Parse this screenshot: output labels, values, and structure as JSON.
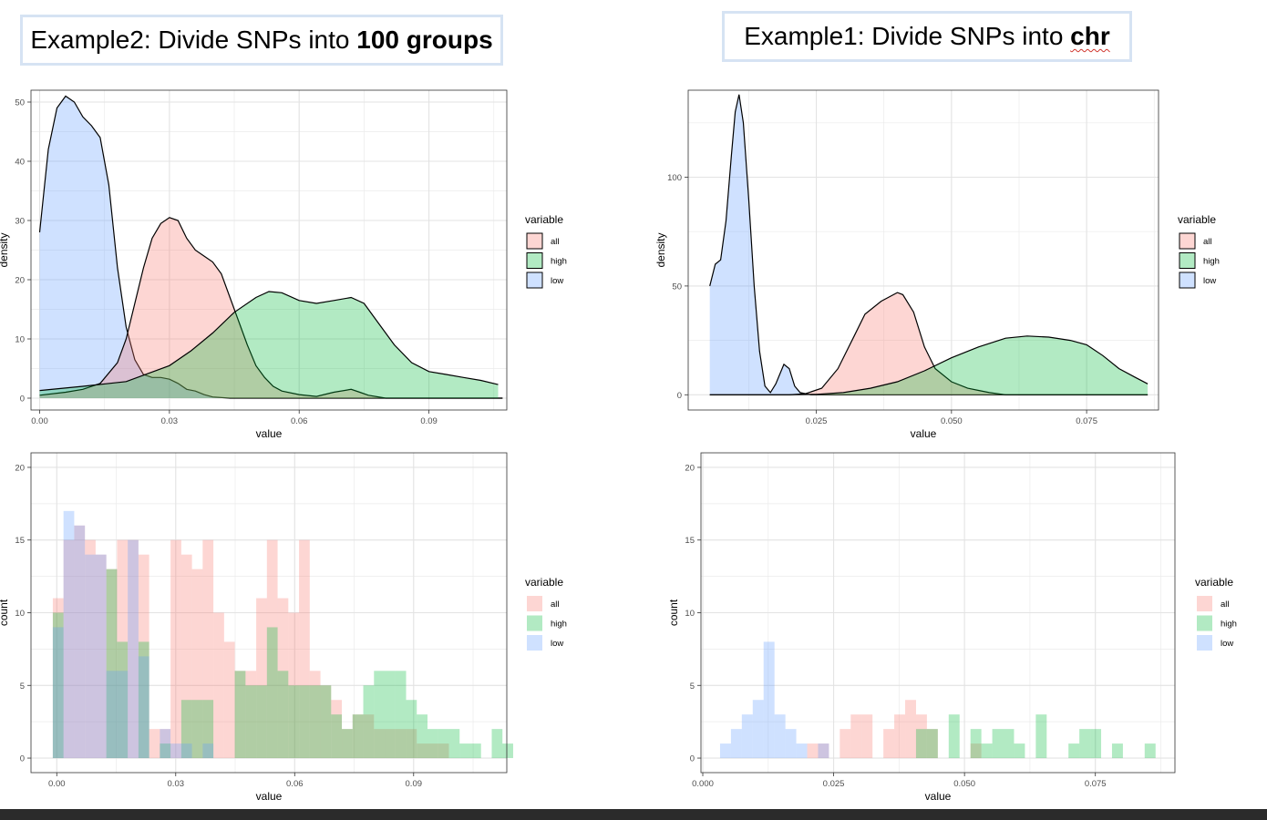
{
  "titles": {
    "left": {
      "prefix": "Example2: Divide SNPs into ",
      "bold": "100 groups"
    },
    "right": {
      "prefix": "Example1: Divide SNPs into ",
      "bold": "chr"
    }
  },
  "colors": {
    "all": "#f8766d",
    "high": "#00ba38",
    "low": "#619cff",
    "grid": "#ebebeb",
    "panel_border": "#333333"
  },
  "chart_data": [
    {
      "id": "density-100groups",
      "type": "area",
      "xlabel": "value",
      "ylabel": "density",
      "xlim": [
        -0.002,
        0.108
      ],
      "ylim": [
        -2,
        52
      ],
      "x_ticks": [
        0.0,
        0.03,
        0.06,
        0.09
      ],
      "x_tick_labels": [
        "0.00",
        "0.03",
        "0.06",
        "0.09"
      ],
      "y_ticks": [
        0,
        10,
        20,
        30,
        40,
        50
      ],
      "y_tick_labels": [
        "0",
        "10",
        "20",
        "30",
        "40",
        "50"
      ],
      "legend": {
        "title": "variable",
        "entries": [
          "all",
          "high",
          "low"
        ],
        "placement": "right"
      },
      "series": [
        {
          "name": "low",
          "points": [
            [
              0.0,
              28
            ],
            [
              0.002,
              42
            ],
            [
              0.004,
              49
            ],
            [
              0.006,
              51
            ],
            [
              0.008,
              50
            ],
            [
              0.01,
              47.5
            ],
            [
              0.012,
              46
            ],
            [
              0.014,
              44
            ],
            [
              0.016,
              36
            ],
            [
              0.018,
              22
            ],
            [
              0.02,
              12
            ],
            [
              0.022,
              6.5
            ],
            [
              0.024,
              4
            ],
            [
              0.026,
              3.5
            ],
            [
              0.028,
              3.5
            ],
            [
              0.03,
              3.2
            ],
            [
              0.032,
              2.5
            ],
            [
              0.034,
              1.5
            ],
            [
              0.036,
              1.2
            ],
            [
              0.038,
              0.6
            ],
            [
              0.04,
              0.2
            ],
            [
              0.044,
              0
            ],
            [
              0.107,
              0
            ]
          ]
        },
        {
          "name": "all",
          "points": [
            [
              0.0,
              0.5
            ],
            [
              0.006,
              1
            ],
            [
              0.01,
              1.5
            ],
            [
              0.014,
              2.5
            ],
            [
              0.018,
              6
            ],
            [
              0.02,
              10
            ],
            [
              0.022,
              16
            ],
            [
              0.024,
              22
            ],
            [
              0.026,
              27
            ],
            [
              0.028,
              29.5
            ],
            [
              0.03,
              30.5
            ],
            [
              0.032,
              30
            ],
            [
              0.034,
              27
            ],
            [
              0.036,
              25
            ],
            [
              0.038,
              24
            ],
            [
              0.04,
              23
            ],
            [
              0.042,
              21
            ],
            [
              0.044,
              17
            ],
            [
              0.046,
              13
            ],
            [
              0.048,
              9
            ],
            [
              0.05,
              5.5
            ],
            [
              0.052,
              3.5
            ],
            [
              0.054,
              2
            ],
            [
              0.056,
              1.2
            ],
            [
              0.06,
              0.6
            ],
            [
              0.064,
              0.3
            ],
            [
              0.068,
              1
            ],
            [
              0.072,
              1.5
            ],
            [
              0.074,
              1
            ],
            [
              0.076,
              0.5
            ],
            [
              0.08,
              0
            ],
            [
              0.107,
              0
            ]
          ]
        },
        {
          "name": "high",
          "points": [
            [
              0.0,
              1.3
            ],
            [
              0.01,
              2
            ],
            [
              0.02,
              2.8
            ],
            [
              0.03,
              5.5
            ],
            [
              0.035,
              8
            ],
            [
              0.04,
              11
            ],
            [
              0.045,
              14.5
            ],
            [
              0.05,
              17
            ],
            [
              0.053,
              18
            ],
            [
              0.056,
              17.8
            ],
            [
              0.06,
              16.5
            ],
            [
              0.064,
              16
            ],
            [
              0.068,
              16.5
            ],
            [
              0.072,
              17
            ],
            [
              0.075,
              16
            ],
            [
              0.078,
              13
            ],
            [
              0.082,
              9
            ],
            [
              0.086,
              6
            ],
            [
              0.09,
              4.5
            ],
            [
              0.094,
              4
            ],
            [
              0.098,
              3.5
            ],
            [
              0.102,
              3
            ],
            [
              0.106,
              2.3
            ]
          ]
        }
      ]
    },
    {
      "id": "density-chr",
      "type": "area",
      "xlabel": "value",
      "ylabel": "density",
      "xlim": [
        0.0013,
        0.0883
      ],
      "ylim": [
        -7,
        140
      ],
      "x_ticks": [
        0.025,
        0.05,
        0.075
      ],
      "x_tick_labels": [
        "0.025",
        "0.050",
        "0.075"
      ],
      "y_ticks": [
        0,
        50,
        100
      ],
      "y_tick_labels": [
        "0",
        "50",
        "100"
      ],
      "legend": {
        "title": "variable",
        "entries": [
          "all",
          "high",
          "low"
        ],
        "placement": "right"
      },
      "series": [
        {
          "name": "low",
          "points": [
            [
              0.0053,
              50
            ],
            [
              0.0063,
              60
            ],
            [
              0.0073,
              62
            ],
            [
              0.0083,
              80
            ],
            [
              0.0093,
              110
            ],
            [
              0.01,
              130
            ],
            [
              0.0107,
              138
            ],
            [
              0.0115,
              125
            ],
            [
              0.0125,
              90
            ],
            [
              0.0135,
              50
            ],
            [
              0.0145,
              20
            ],
            [
              0.0155,
              4
            ],
            [
              0.0165,
              1
            ],
            [
              0.0175,
              5
            ],
            [
              0.019,
              14
            ],
            [
              0.02,
              12
            ],
            [
              0.021,
              4
            ],
            [
              0.022,
              1
            ],
            [
              0.024,
              0
            ],
            [
              0.0863,
              0
            ]
          ]
        },
        {
          "name": "all",
          "points": [
            [
              0.0053,
              0
            ],
            [
              0.02,
              0
            ],
            [
              0.023,
              0.5
            ],
            [
              0.026,
              3
            ],
            [
              0.029,
              12
            ],
            [
              0.032,
              27
            ],
            [
              0.034,
              37
            ],
            [
              0.037,
              43
            ],
            [
              0.04,
              47
            ],
            [
              0.041,
              46
            ],
            [
              0.043,
              38
            ],
            [
              0.045,
              22
            ],
            [
              0.047,
              12
            ],
            [
              0.05,
              6
            ],
            [
              0.053,
              3
            ],
            [
              0.055,
              2
            ],
            [
              0.057,
              1
            ],
            [
              0.06,
              0
            ],
            [
              0.0863,
              0
            ]
          ]
        },
        {
          "name": "high",
          "points": [
            [
              0.0053,
              0
            ],
            [
              0.02,
              0
            ],
            [
              0.025,
              0.2
            ],
            [
              0.03,
              1
            ],
            [
              0.035,
              3
            ],
            [
              0.04,
              6
            ],
            [
              0.045,
              11
            ],
            [
              0.05,
              17
            ],
            [
              0.055,
              22
            ],
            [
              0.06,
              26
            ],
            [
              0.064,
              27
            ],
            [
              0.068,
              26.5
            ],
            [
              0.072,
              25
            ],
            [
              0.075,
              23
            ],
            [
              0.078,
              18
            ],
            [
              0.081,
              12
            ],
            [
              0.084,
              8
            ],
            [
              0.0863,
              5
            ]
          ]
        }
      ]
    },
    {
      "id": "histogram-100groups",
      "type": "bar",
      "xlabel": "value",
      "ylabel": "count",
      "xlim": [
        -0.0065,
        0.1135
      ],
      "ylim": [
        -1,
        21
      ],
      "x_ticks": [
        0.0,
        0.03,
        0.06,
        0.09
      ],
      "x_tick_labels": [
        "0.00",
        "0.03",
        "0.06",
        "0.09"
      ],
      "y_ticks": [
        0,
        5,
        10,
        15,
        20
      ],
      "y_tick_labels": [
        "0",
        "5",
        "10",
        "15",
        "20"
      ],
      "bin_start": -0.001,
      "bin_width": 0.0027,
      "legend": {
        "title": "variable",
        "entries": [
          "all",
          "high",
          "low"
        ],
        "placement": "right"
      },
      "series": [
        {
          "name": "all",
          "values": [
            11,
            15,
            16,
            15,
            14,
            13,
            15,
            15,
            14,
            2,
            2,
            15,
            14,
            13,
            15,
            10,
            8,
            6,
            6,
            11,
            15,
            11,
            10,
            15,
            6,
            5,
            4,
            2,
            3,
            3,
            2,
            2,
            2,
            2,
            1,
            1,
            1,
            0,
            0,
            0,
            0,
            0,
            0
          ]
        },
        {
          "name": "high",
          "values": [
            10,
            0,
            0,
            0,
            0,
            13,
            8,
            0,
            8,
            0,
            1,
            0,
            4,
            4,
            4,
            0,
            0,
            6,
            5,
            5,
            9,
            6,
            5,
            5,
            5,
            5,
            3,
            2,
            3,
            5,
            6,
            6,
            6,
            4,
            3,
            2,
            2,
            2,
            1,
            1,
            0,
            2,
            1
          ]
        },
        {
          "name": "low",
          "values": [
            9,
            17,
            16,
            14,
            14,
            6,
            6,
            15,
            7,
            0,
            2,
            1,
            1,
            0,
            1,
            0,
            0,
            0,
            0,
            0,
            0,
            0,
            0,
            0,
            0,
            0,
            0,
            0,
            0,
            0,
            0,
            0,
            0,
            0,
            0,
            0,
            0,
            0,
            0,
            0,
            0,
            0,
            0
          ]
        }
      ]
    },
    {
      "id": "histogram-chr",
      "type": "bar",
      "xlabel": "value",
      "ylabel": "count",
      "xlim": [
        -0.00035,
        0.0902
      ],
      "ylim": [
        -1,
        21
      ],
      "x_ticks": [
        0.0,
        0.025,
        0.05,
        0.075
      ],
      "x_tick_labels": [
        "0.000",
        "0.025",
        "0.050",
        "0.075"
      ],
      "y_ticks": [
        0,
        5,
        10,
        15,
        20
      ],
      "y_tick_labels": [
        "0",
        "5",
        "10",
        "15",
        "20"
      ],
      "bin_start": 0.0033,
      "bin_width": 0.00208,
      "legend": {
        "title": "variable",
        "entries": [
          "all",
          "high",
          "low"
        ],
        "placement": "right"
      },
      "series": [
        {
          "name": "all",
          "values": [
            0,
            0,
            0,
            0,
            0,
            0,
            0,
            0,
            1,
            1,
            0,
            2,
            3,
            3,
            0,
            2,
            3,
            4,
            3,
            2,
            0,
            0,
            0,
            1,
            0,
            0,
            0,
            0,
            0,
            0,
            0,
            0,
            0,
            0,
            0,
            0,
            0,
            0,
            0,
            0
          ]
        },
        {
          "name": "high",
          "values": [
            0,
            0,
            0,
            0,
            0,
            0,
            0,
            0,
            0,
            0,
            0,
            0,
            0,
            0,
            0,
            0,
            0,
            0,
            2,
            2,
            0,
            3,
            0,
            2,
            1,
            2,
            2,
            1,
            0,
            3,
            0,
            0,
            1,
            2,
            2,
            0,
            1,
            0,
            0,
            1
          ]
        },
        {
          "name": "low",
          "values": [
            1,
            2,
            3,
            4,
            8,
            3,
            2,
            1,
            0,
            1,
            0,
            0,
            0,
            0,
            0,
            0,
            0,
            0,
            0,
            0,
            0,
            0,
            0,
            0,
            0,
            0,
            0,
            0,
            0,
            0,
            0,
            0,
            0,
            0,
            0,
            0,
            0,
            0,
            0,
            0
          ]
        }
      ]
    }
  ]
}
